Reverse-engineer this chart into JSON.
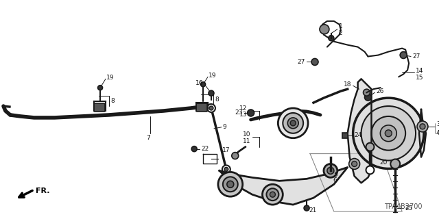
{
  "diagram_code": "TPA4B2700",
  "bg_color": "#ffffff",
  "fig_width": 6.4,
  "fig_height": 3.2,
  "dpi": 100,
  "lc": "#1a1a1a",
  "label_color": "#111111",
  "label_fs": 6.5
}
